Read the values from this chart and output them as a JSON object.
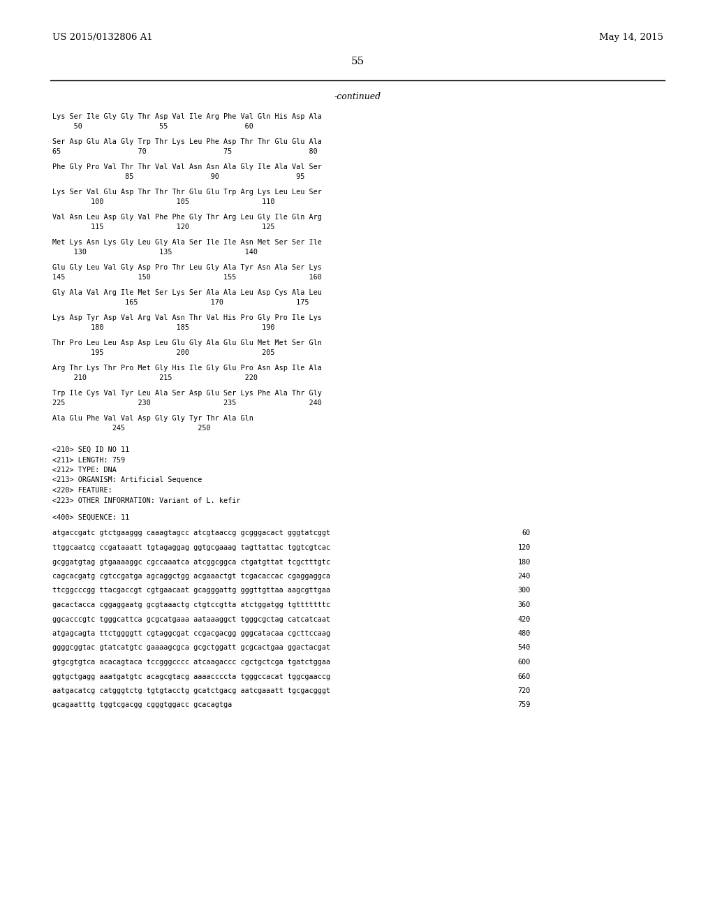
{
  "background_color": "#ffffff",
  "header_left": "US 2015/0132806 A1",
  "header_right": "May 14, 2015",
  "page_number": "55",
  "continued_text": "-continued",
  "sequence_lines": [
    "Lys Ser Ile Gly Gly Thr Asp Val Ile Arg Phe Val Gln His Asp Ala",
    "     50                  55                  60",
    "",
    "Ser Asp Glu Ala Gly Trp Thr Lys Leu Phe Asp Thr Thr Glu Glu Ala",
    "65                  70                  75                  80",
    "",
    "Phe Gly Pro Val Thr Thr Val Val Asn Asn Ala Gly Ile Ala Val Ser",
    "                 85                  90                  95",
    "",
    "Lys Ser Val Glu Asp Thr Thr Thr Glu Glu Trp Arg Lys Leu Leu Ser",
    "         100                 105                 110",
    "",
    "Val Asn Leu Asp Gly Val Phe Phe Gly Thr Arg Leu Gly Ile Gln Arg",
    "         115                 120                 125",
    "",
    "Met Lys Asn Lys Gly Leu Gly Ala Ser Ile Ile Asn Met Ser Ser Ile",
    "     130                 135                 140",
    "",
    "Glu Gly Leu Val Gly Asp Pro Thr Leu Gly Ala Tyr Asn Ala Ser Lys",
    "145                 150                 155                 160",
    "",
    "Gly Ala Val Arg Ile Met Ser Lys Ser Ala Ala Leu Asp Cys Ala Leu",
    "                 165                 170                 175",
    "",
    "Lys Asp Tyr Asp Val Arg Val Asn Thr Val His Pro Gly Pro Ile Lys",
    "         180                 185                 190",
    "",
    "Thr Pro Leu Leu Asp Asp Leu Glu Gly Ala Glu Glu Met Met Ser Gln",
    "         195                 200                 205",
    "",
    "Arg Thr Lys Thr Pro Met Gly His Ile Gly Glu Pro Asn Asp Ile Ala",
    "     210                 215                 220",
    "",
    "Trp Ile Cys Val Tyr Leu Ala Ser Asp Glu Ser Lys Phe Ala Thr Gly",
    "225                 230                 235                 240",
    "",
    "Ala Glu Phe Val Val Asp Gly Gly Tyr Thr Ala Gln",
    "              245                 250"
  ],
  "metadata_lines": [
    "<210> SEQ ID NO 11",
    "<211> LENGTH: 759",
    "<212> TYPE: DNA",
    "<213> ORGANISM: Artificial Sequence",
    "<220> FEATURE:",
    "<223> OTHER INFORMATION: Variant of L. kefir"
  ],
  "seq400_line": "<400> SEQUENCE: 11",
  "dna_lines": [
    [
      "atgaccgatc gtctgaaggg caaagtagcc atcgtaaccg gcgggacact gggtatcggt",
      "60"
    ],
    [
      "ttggcaatcg ccgataaatt tgtagaggag ggtgcgaaag tagttattac tggtcgtcac",
      "120"
    ],
    [
      "gcggatgtag gtgaaaaggc cgccaaatca atcggcggca ctgatgttat tcgctttgtc",
      "180"
    ],
    [
      "cagcacgatg cgtccgatga agcaggctgg acgaaactgt tcgacaccac cgaggaggca",
      "240"
    ],
    [
      "ttcggcccgg ttacgaccgt cgtgaacaat gcagggattg gggttgttaa aagcgttgaa",
      "300"
    ],
    [
      "gacactacca cggaggaatg gcgtaaactg ctgtccgtta atctggatgg tgtttttttc",
      "360"
    ],
    [
      "ggcacccgtc tgggcattca gcgcatgaaa aataaaggct tgggcgctag catcatcaat",
      "420"
    ],
    [
      "atgagcagta ttctggggtt cgtaggcgat ccgacgacgg gggcatacaa cgcttccaag",
      "480"
    ],
    [
      "ggggcggtac gtatcatgtc gaaaagcgca gcgctggatt gcgcactgaa ggactacgat",
      "540"
    ],
    [
      "gtgcgtgtca acacagtaca tccgggcccc atcaagaccc cgctgctcga tgatctggaa",
      "600"
    ],
    [
      "ggtgctgagg aaatgatgtc acagcgtacg aaaaccccta tgggccacat tggcgaaccg",
      "660"
    ],
    [
      "aatgacatcg catgggtctg tgtgtacctg gcatctgacg aatcgaaatt tgcgacgggt",
      "720"
    ],
    [
      "gcagaatttg tggtcgacgg cgggtggacc gcacagtga",
      "759"
    ]
  ]
}
